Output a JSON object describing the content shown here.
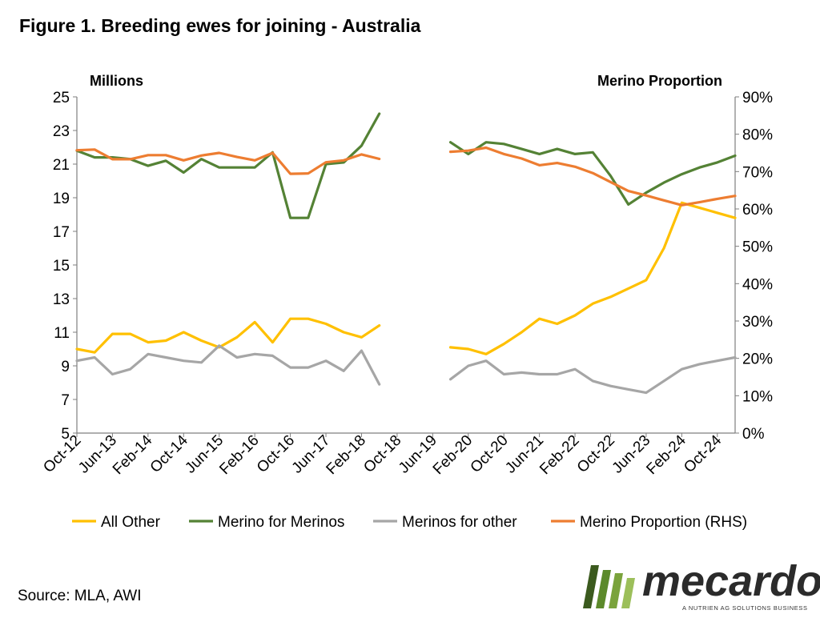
{
  "figure": {
    "title": "Figure 1. Breeding ewes for joining - Australia",
    "source": "Source: MLA, AWI"
  },
  "logo": {
    "wordmark": "mecardo",
    "tagline": "A NUTRIEN AG SOLUTIONS BUSINESS"
  },
  "colors": {
    "all_other": "#FFC000",
    "merino_for_merinos": "#548235",
    "merinos_for_other": "#A6A6A6",
    "merino_proportion": "#ED7D31",
    "axis": "#7F7F7F",
    "logo_green_dark": "#3b5a1e",
    "logo_green_light": "#7aa33c"
  },
  "chart_data": {
    "type": "line",
    "left_axis_title": "Millions",
    "right_axis_title": "Merino Proportion",
    "ylim": [
      5,
      25
    ],
    "y_ticks": [
      "5",
      "7",
      "9",
      "11",
      "13",
      "15",
      "17",
      "19",
      "21",
      "23",
      "25"
    ],
    "y2lim": [
      0,
      90
    ],
    "y2_ticks": [
      "0%",
      "10%",
      "20%",
      "30%",
      "40%",
      "50%",
      "60%",
      "70%",
      "80%",
      "90%"
    ],
    "x_tick_labels": [
      "Oct-12",
      "Jun-13",
      "Feb-14",
      "Oct-14",
      "Jun-15",
      "Feb-16",
      "Oct-16",
      "Jun-17",
      "Feb-18",
      "Oct-18",
      "Jun-19",
      "Feb-20",
      "Oct-20",
      "Jun-21",
      "Feb-22",
      "Oct-22",
      "Jun-23",
      "Feb-24",
      "Oct-24"
    ],
    "x": [
      "Oct-12",
      "Feb-13",
      "Jun-13",
      "Oct-13",
      "Feb-14",
      "Jun-14",
      "Oct-14",
      "Feb-15",
      "Jun-15",
      "Oct-15",
      "Feb-16",
      "Jun-16",
      "Oct-16",
      "Feb-17",
      "Jun-17",
      "Oct-17",
      "Feb-18",
      "Jun-18",
      "Oct-18",
      "Feb-19",
      "Jun-19",
      "Oct-19",
      "Feb-20",
      "Jun-20",
      "Oct-20",
      "Feb-21",
      "Jun-21",
      "Oct-21",
      "Feb-22",
      "Jun-22",
      "Oct-22",
      "Feb-23",
      "Jun-23",
      "Oct-23",
      "Feb-24",
      "Jun-24",
      "Oct-24",
      "Feb-25"
    ],
    "legend_position": "bottom",
    "grid": false,
    "series": [
      {
        "name": "All Other",
        "color_key": "all_other",
        "axis": "left",
        "values": [
          10.0,
          9.8,
          10.9,
          10.9,
          10.4,
          10.5,
          11.0,
          10.5,
          10.1,
          10.7,
          11.6,
          10.4,
          11.8,
          11.8,
          11.5,
          11.0,
          10.7,
          11.4,
          null,
          null,
          null,
          10.1,
          10.0,
          9.7,
          10.3,
          11.0,
          11.8,
          11.5,
          12.0,
          12.7,
          13.1,
          13.6,
          14.1,
          16.0,
          18.7,
          18.4,
          18.1,
          17.8
        ]
      },
      {
        "name": "Merino for Merinos",
        "color_key": "merino_for_merinos",
        "axis": "left",
        "values": [
          21.8,
          21.4,
          21.4,
          21.3,
          20.9,
          21.2,
          20.5,
          21.3,
          20.8,
          20.8,
          20.8,
          21.7,
          17.8,
          17.8,
          21.0,
          21.1,
          22.1,
          24.0,
          null,
          null,
          null,
          22.3,
          21.6,
          22.3,
          22.2,
          21.9,
          21.6,
          21.9,
          21.6,
          21.7,
          20.3,
          18.6,
          19.3,
          19.9,
          20.4,
          20.8,
          21.1,
          21.5
        ]
      },
      {
        "name": "Merinos for other",
        "color_key": "merinos_for_other",
        "axis": "left",
        "values": [
          9.3,
          9.5,
          8.5,
          8.8,
          9.7,
          9.5,
          9.3,
          9.2,
          10.2,
          9.5,
          9.7,
          9.6,
          8.9,
          8.9,
          9.3,
          8.7,
          9.9,
          7.9,
          null,
          null,
          null,
          8.2,
          9.0,
          9.3,
          8.5,
          8.6,
          8.5,
          8.5,
          8.8,
          8.1,
          7.8,
          7.6,
          7.4,
          8.1,
          8.8,
          9.1,
          9.3,
          9.5
        ]
      },
      {
        "name": "Merino Proportion (RHS)",
        "color_key": "merino_proportion",
        "axis": "right",
        "values": [
          75.7,
          75.9,
          73.3,
          73.3,
          74.4,
          74.4,
          73.0,
          74.3,
          75.0,
          73.9,
          73.0,
          75.0,
          69.4,
          69.5,
          72.5,
          73.0,
          74.6,
          73.4,
          null,
          null,
          null,
          75.3,
          75.6,
          76.4,
          74.7,
          73.5,
          71.7,
          72.3,
          71.3,
          69.6,
          67.2,
          64.8,
          63.6,
          62.3,
          61.0,
          61.8,
          62.7,
          63.5
        ]
      }
    ]
  }
}
